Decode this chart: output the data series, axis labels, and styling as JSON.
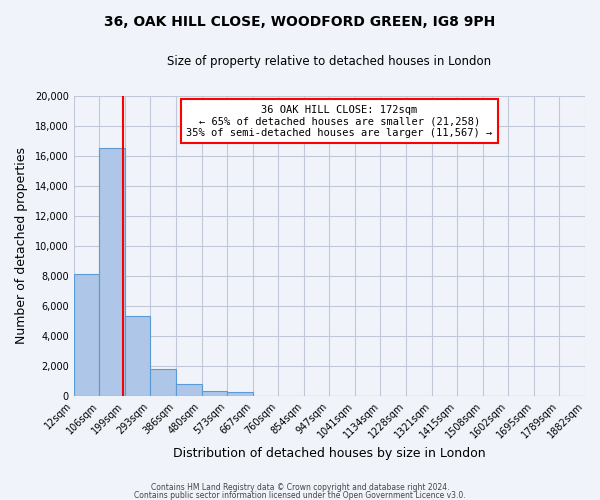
{
  "title": "36, OAK HILL CLOSE, WOODFORD GREEN, IG8 9PH",
  "subtitle": "Size of property relative to detached houses in London",
  "xlabel": "Distribution of detached houses by size in London",
  "ylabel": "Number of detached properties",
  "bin_labels": [
    "12sqm",
    "106sqm",
    "199sqm",
    "293sqm",
    "386sqm",
    "480sqm",
    "573sqm",
    "667sqm",
    "760sqm",
    "854sqm",
    "947sqm",
    "1041sqm",
    "1134sqm",
    "1228sqm",
    "1321sqm",
    "1415sqm",
    "1508sqm",
    "1602sqm",
    "1695sqm",
    "1789sqm",
    "1882sqm"
  ],
  "bar_heights": [
    8100,
    16500,
    5300,
    1800,
    800,
    300,
    280,
    0,
    0,
    0,
    0,
    0,
    0,
    0,
    0,
    0,
    0,
    0,
    0,
    0
  ],
  "bar_color": "#aec6e8",
  "bar_edge_color": "#5b9bd5",
  "vline_x": 1.93,
  "vline_color": "red",
  "annotation_title": "36 OAK HILL CLOSE: 172sqm",
  "annotation_line1": "← 65% of detached houses are smaller (21,258)",
  "annotation_line2": "35% of semi-detached houses are larger (11,567) →",
  "annotation_box_color": "#ffffff",
  "annotation_border_color": "red",
  "ylim": [
    0,
    20000
  ],
  "yticks": [
    0,
    2000,
    4000,
    6000,
    8000,
    10000,
    12000,
    14000,
    16000,
    18000,
    20000
  ],
  "footer1": "Contains HM Land Registry data © Crown copyright and database right 2024.",
  "footer2": "Contains public sector information licensed under the Open Government Licence v3.0.",
  "bg_color": "#f0f4fa",
  "grid_color": "#c0c8d8"
}
